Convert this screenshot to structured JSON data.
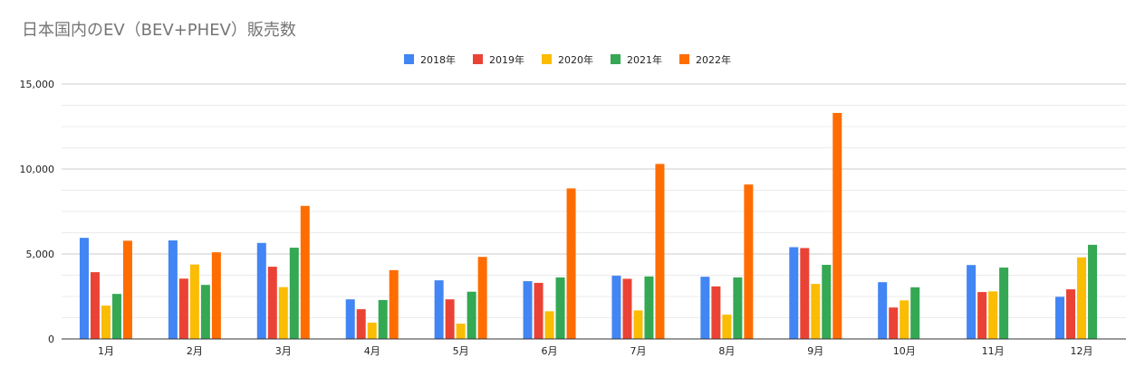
{
  "chart_data": {
    "type": "bar",
    "title": "日本国内のEV（BEV+PHEV）販売数",
    "xlabel": "",
    "ylabel": "",
    "categories": [
      "1月",
      "2月",
      "3月",
      "4月",
      "5月",
      "6月",
      "7月",
      "8月",
      "9月",
      "10月",
      "11月",
      "12月"
    ],
    "ylim": [
      0,
      15000
    ],
    "yticks": [
      0,
      5000,
      10000,
      15000
    ],
    "ytick_labels": [
      "0",
      "5,000",
      "10,000",
      "15,000"
    ],
    "grid": true,
    "legend_position": "top-center",
    "series": [
      {
        "name": "2018年",
        "color": "#4285F4",
        "values": [
          5950,
          5800,
          5650,
          2330,
          3450,
          3400,
          3720,
          3660,
          5400,
          3340,
          4350,
          2480
        ]
      },
      {
        "name": "2019年",
        "color": "#EA4335",
        "values": [
          3930,
          3550,
          4250,
          1750,
          2330,
          3300,
          3540,
          3090,
          5350,
          1850,
          2760,
          2920
        ]
      },
      {
        "name": "2020年",
        "color": "#FBBC04",
        "values": [
          1960,
          4380,
          3050,
          960,
          900,
          1630,
          1680,
          1430,
          3240,
          2270,
          2800,
          4800
        ]
      },
      {
        "name": "2021年",
        "color": "#34A853",
        "values": [
          2650,
          3180,
          5370,
          2290,
          2780,
          3620,
          3680,
          3620,
          4360,
          3040,
          4200,
          5540
        ]
      },
      {
        "name": "2022年",
        "color": "#FF6D01",
        "values": [
          5780,
          5100,
          7830,
          4050,
          4830,
          8860,
          10300,
          9090,
          13300,
          null,
          null,
          null
        ]
      }
    ]
  }
}
